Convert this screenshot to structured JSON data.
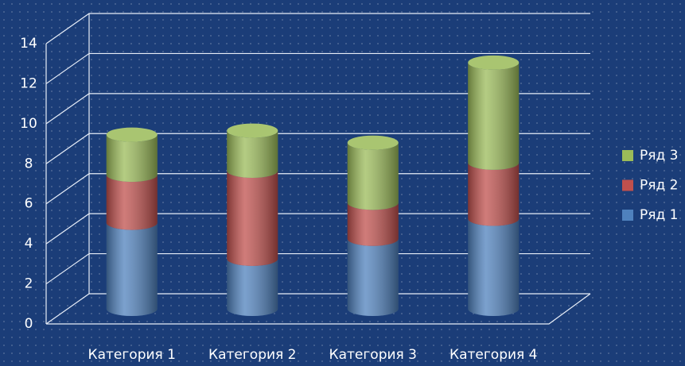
{
  "chart_data": {
    "type": "bar",
    "stacked": true,
    "three_d": true,
    "categories": [
      "Категория 1",
      "Категория 2",
      "Категория 3",
      "Категория 4"
    ],
    "series": [
      {
        "name": "Ряд 1",
        "color": "#4f81bd",
        "values": [
          4.3,
          2.5,
          3.5,
          4.5
        ]
      },
      {
        "name": "Ряд 2",
        "color": "#c0504d",
        "values": [
          2.4,
          4.4,
          1.8,
          2.8
        ]
      },
      {
        "name": "Ряд 3",
        "color": "#9bbb59",
        "values": [
          2,
          2,
          3,
          5
        ]
      }
    ],
    "ylim": [
      0,
      14
    ],
    "yticks": [
      0,
      2,
      4,
      6,
      8,
      10,
      12,
      14
    ],
    "grid": true,
    "legend": "right"
  }
}
